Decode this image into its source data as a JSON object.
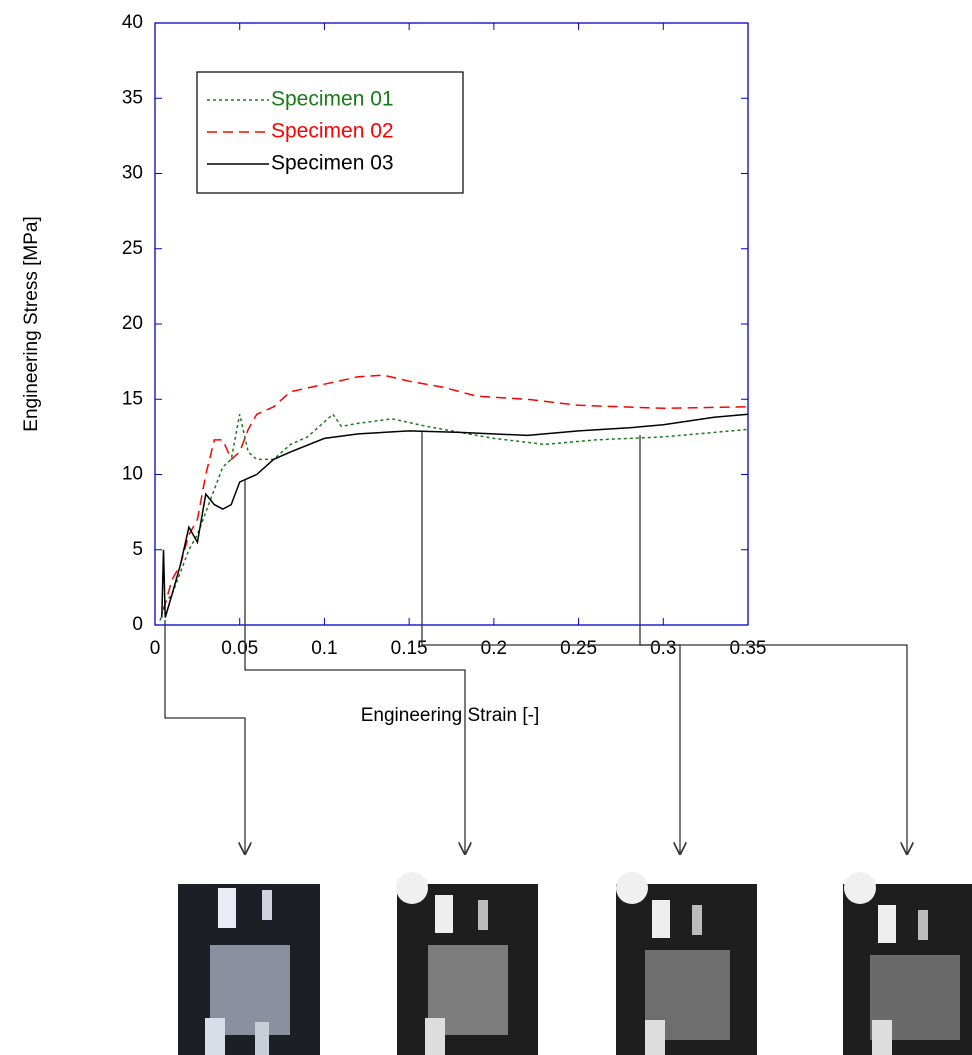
{
  "chart_data": {
    "type": "line",
    "xlabel": "Engineering Strain  [-]",
    "ylabel": "Engineering Stress  [MPa]",
    "xlim": [
      0,
      0.35
    ],
    "xticks": [
      0,
      0.05,
      0.1,
      0.15,
      0.2,
      0.25,
      0.3,
      0.35
    ],
    "ylim": [
      0,
      40
    ],
    "yticks": [
      0,
      5,
      10,
      15,
      20,
      25,
      30,
      35,
      40
    ],
    "axis_color": "#0000cc",
    "legend": "upper left",
    "series": [
      {
        "name": "Specimen 01",
        "color": "#1a7a1a",
        "linestyle": "dotted",
        "x": [
          0.003,
          0.006,
          0.01,
          0.015,
          0.02,
          0.025,
          0.03,
          0.035,
          0.04,
          0.045,
          0.05,
          0.055,
          0.06,
          0.07,
          0.08,
          0.09,
          0.1,
          0.105,
          0.11,
          0.12,
          0.14,
          0.16,
          0.18,
          0.2,
          0.23,
          0.26,
          0.3,
          0.35
        ],
        "values": [
          0.3,
          1.5,
          2,
          3.5,
          5,
          6,
          7.5,
          9,
          10.5,
          11,
          14,
          11.5,
          11,
          11,
          12,
          12.5,
          13.5,
          14,
          13.2,
          13.4,
          13.7,
          13.2,
          12.8,
          12.4,
          12.0,
          12.3,
          12.5,
          13.0
        ]
      },
      {
        "name": "Specimen 02",
        "color": "#ff0000",
        "linestyle": "dashed",
        "x": [
          0.005,
          0.01,
          0.015,
          0.02,
          0.025,
          0.03,
          0.035,
          0.04,
          0.045,
          0.05,
          0.055,
          0.06,
          0.07,
          0.08,
          0.1,
          0.12,
          0.135,
          0.15,
          0.17,
          0.19,
          0.22,
          0.25,
          0.3,
          0.35
        ],
        "values": [
          1,
          3,
          4,
          6,
          7,
          10,
          12.3,
          12.3,
          11,
          11.5,
          13,
          14,
          14.5,
          15.5,
          16,
          16.5,
          16.6,
          16.2,
          15.8,
          15.2,
          15,
          14.6,
          14.4,
          14.5
        ]
      },
      {
        "name": "Specimen 03",
        "color": "#000000",
        "linestyle": "solid",
        "x": [
          0.004,
          0.005,
          0.006,
          0.01,
          0.015,
          0.02,
          0.025,
          0.03,
          0.035,
          0.04,
          0.045,
          0.05,
          0.06,
          0.07,
          0.08,
          0.1,
          0.12,
          0.15,
          0.18,
          0.22,
          0.25,
          0.28,
          0.3,
          0.33,
          0.35
        ],
        "values": [
          0.5,
          5,
          0.5,
          2,
          4,
          6.5,
          5.5,
          8.7,
          8,
          7.7,
          8,
          9.5,
          10,
          11,
          11.5,
          12.4,
          12.7,
          12.9,
          12.8,
          12.6,
          12.9,
          13.1,
          13.3,
          13.8,
          14
        ]
      }
    ]
  }
}
